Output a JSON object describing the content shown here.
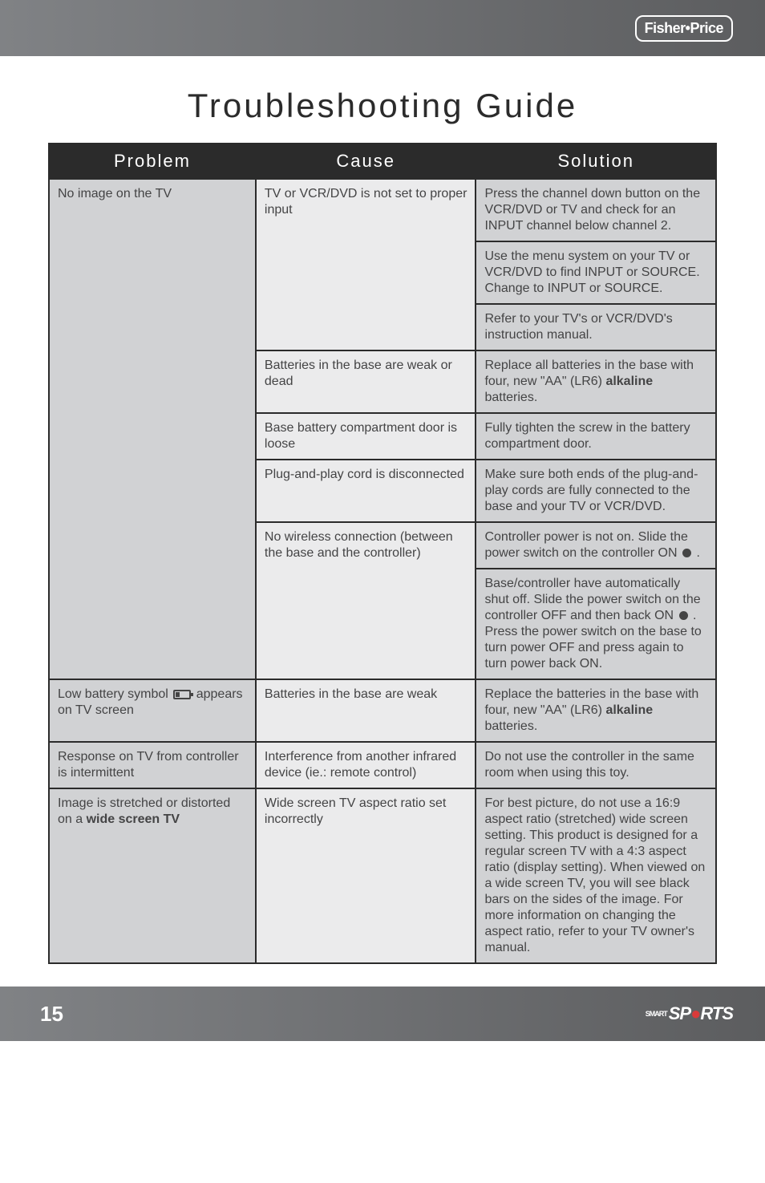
{
  "brand_badge": "Fisher•Price",
  "title": "Troubleshooting Guide",
  "page_number": "15",
  "footer_logo": {
    "smart": "SMART",
    "sp": "SP",
    "ball": "●",
    "rts": "RTS"
  },
  "table": {
    "headers": [
      "Problem",
      "Cause",
      "Solution"
    ],
    "groups": [
      {
        "problem": "No image on the TV",
        "blocks": [
          {
            "cause": "TV or VCR/DVD is not set to proper input",
            "solutions": [
              "Press the channel down button on the VCR/DVD or TV and check for an INPUT channel below channel 2.",
              "Use the menu system on your TV or VCR/DVD to find INPUT or SOURCE. Change to INPUT or SOURCE.",
              "Refer to your TV's or VCR/DVD's instruction manual."
            ]
          },
          {
            "cause": "Batteries in the base are weak or dead",
            "solutions": [
              "Replace all batteries in the base with four, new \"AA\" (LR6) alkaline batteries."
            ]
          },
          {
            "cause": "Base battery compartment door is loose",
            "solutions": [
              "Fully tighten the screw in the battery compartment door."
            ]
          },
          {
            "cause": "Plug-and-play cord is disconnected",
            "solutions": [
              "Make sure both ends of the plug-and-play cords are fully connected to the base and your TV or VCR/DVD."
            ]
          },
          {
            "cause": "No wireless connection (between the base and the controller)",
            "solutions": [
              "Controller power is not on. Slide the power switch on the controller ON ● .",
              "Base/controller have automatically shut off. Slide the power switch on the controller OFF and then back ON ● . Press the power switch on the base to turn power OFF and press again to turn power back ON."
            ]
          }
        ]
      },
      {
        "problem_html": "Low battery symbol [BATT] appears on TV screen",
        "blocks": [
          {
            "cause": "Batteries in the base are weak",
            "solutions": [
              "Replace the batteries in the base with four, new \"AA\" (LR6) alkaline batteries."
            ]
          }
        ]
      },
      {
        "problem": "Response on TV from controller is intermittent",
        "blocks": [
          {
            "cause": "Interference from another infrared device (ie.: remote control)",
            "solutions": [
              "Do not use the controller in the same room when using this toy."
            ]
          }
        ]
      },
      {
        "problem_html": "Image is stretched or distorted on a <b>wide screen TV</b>",
        "blocks": [
          {
            "cause": "Wide screen TV aspect ratio set incorrectly",
            "solutions": [
              "For best picture, do not use a 16:9 aspect ratio (stretched) wide screen setting. This product is designed for a regular screen TV with a 4:3 aspect ratio (display setting). When viewed on a wide screen TV, you will see black bars on the sides of the image. For more information on changing the aspect ratio, refer to your TV owner's manual."
            ]
          }
        ]
      }
    ]
  }
}
